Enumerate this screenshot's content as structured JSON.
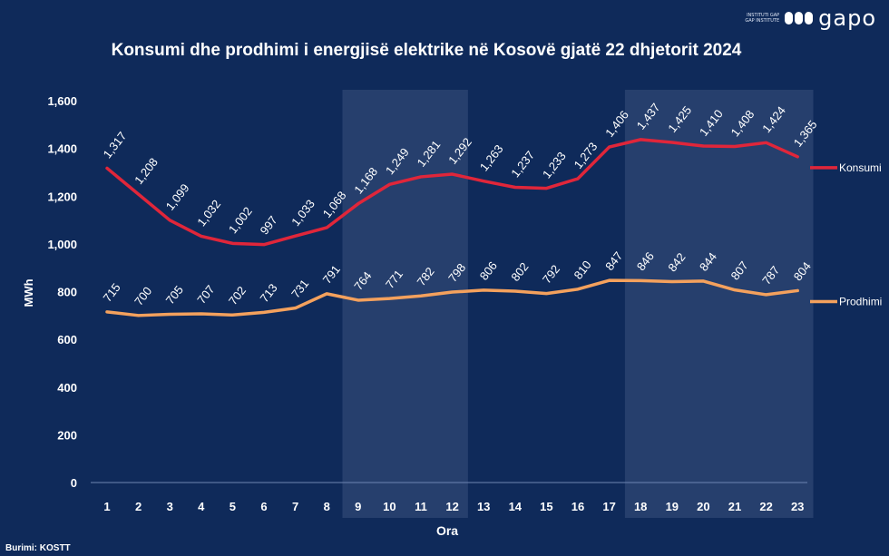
{
  "logo": {
    "text": "gapo",
    "line1": "INSTITUTI GAP",
    "line2": "GAP INSTITUTE"
  },
  "source": "Burimi: KOSTT",
  "colors": {
    "background": "#0f2a5a",
    "consumption": "#e0263a",
    "production": "#f4a15d",
    "shade": "#2a4371"
  },
  "chart_data": {
    "type": "line",
    "title": "Konsumi dhe prodhimi i energjisë elektrike në Kosovë gjatë 22 dhjetorit 2024",
    "xlabel": "Ora",
    "ylabel": "MWh",
    "ylim": [
      0,
      1600
    ],
    "yticks": [
      "0",
      "200",
      "400",
      "600",
      "800",
      "1,000",
      "1,200",
      "1,400",
      "1,600"
    ],
    "ytick_values": [
      0,
      200,
      400,
      600,
      800,
      1000,
      1200,
      1400,
      1600
    ],
    "categories": [
      "1",
      "2",
      "3",
      "4",
      "5",
      "6",
      "7",
      "8",
      "9",
      "10",
      "11",
      "12",
      "13",
      "14",
      "15",
      "16",
      "17",
      "18",
      "19",
      "20",
      "21",
      "22",
      "23"
    ],
    "shaded_ranges": [
      [
        "9",
        "12"
      ],
      [
        "18",
        "23"
      ]
    ],
    "grid": false,
    "legend": "right, at line ends",
    "series": [
      {
        "name": "Konsumi",
        "values": [
          1317,
          1208,
          1099,
          1032,
          1002,
          997,
          1033,
          1068,
          1168,
          1249,
          1281,
          1292,
          1263,
          1237,
          1233,
          1273,
          1406,
          1437,
          1425,
          1410,
          1408,
          1424,
          1365
        ],
        "labels": [
          "1,317",
          "1,208",
          "1,099",
          "1,032",
          "1,002",
          "997",
          "1,033",
          "1,068",
          "1,168",
          "1,249",
          "1,281",
          "1,292",
          "1,263",
          "1,237",
          "1,233",
          "1,273",
          "1,406",
          "1,437",
          "1,425",
          "1,410",
          "1,408",
          "1,424",
          "1,365"
        ]
      },
      {
        "name": "Prodhimi",
        "values": [
          715,
          700,
          705,
          707,
          702,
          713,
          731,
          791,
          764,
          771,
          782,
          798,
          806,
          802,
          792,
          810,
          847,
          846,
          842,
          844,
          807,
          787,
          804
        ],
        "labels": [
          "715",
          "700",
          "705",
          "707",
          "702",
          "713",
          "731",
          "791",
          "764",
          "771",
          "782",
          "798",
          "806",
          "802",
          "792",
          "810",
          "847",
          "846",
          "842",
          "844",
          "807",
          "787",
          "804"
        ]
      }
    ]
  }
}
